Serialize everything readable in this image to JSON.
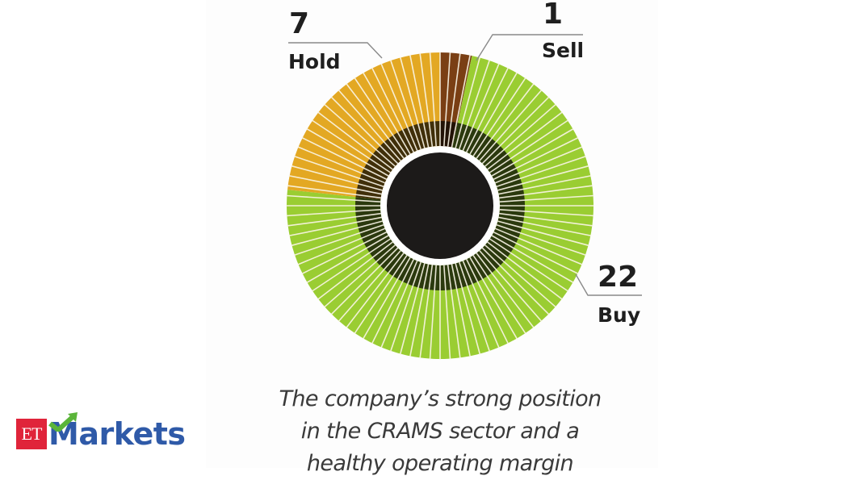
{
  "chart_data": {
    "type": "pie",
    "style": "donut",
    "title": "",
    "categories": [
      "Sell",
      "Buy",
      "Hold"
    ],
    "values": [
      1,
      22,
      7
    ],
    "total": 30,
    "colors": {
      "Sell": "#7a3f14",
      "Buy": "#9acd32",
      "Hold": "#e3a823"
    },
    "labels": [
      {
        "category": "Hold",
        "value": "7",
        "text": "Hold"
      },
      {
        "category": "Sell",
        "value": "1",
        "text": "Sell"
      },
      {
        "category": "Buy",
        "value": "22",
        "text": "Buy"
      }
    ],
    "center_color": "#1c1a19"
  },
  "caption": {
    "lines": [
      "The company’s strong position",
      "in the CRAMS sector and a",
      "healthy operating margin"
    ]
  },
  "brand": {
    "et": "ET",
    "name": "Markets",
    "colors": {
      "et_bg": "#e0243a",
      "text": "#2f5aa8",
      "arrow": "#5bb53a"
    }
  }
}
